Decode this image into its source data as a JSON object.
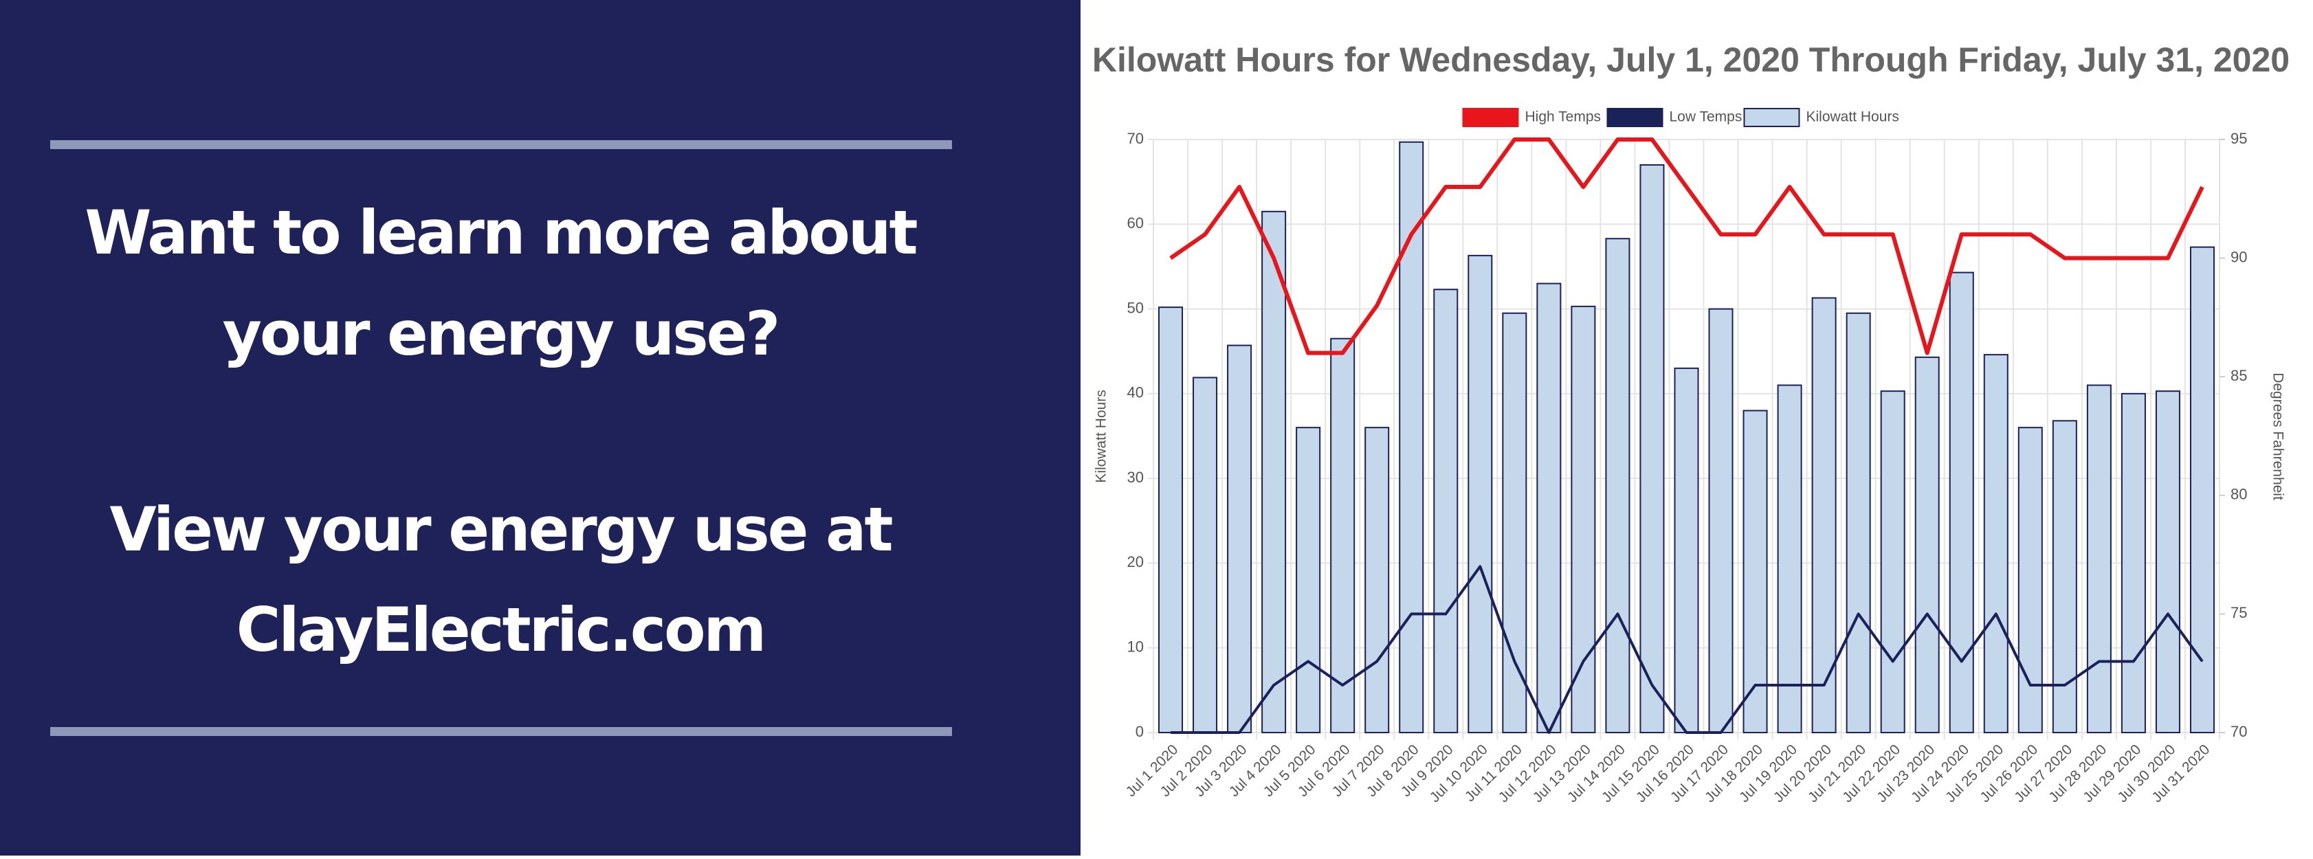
{
  "panel": {
    "question": [
      "Want to learn more about",
      "your energy use?"
    ],
    "cta": [
      "View your energy use at",
      "ClayElectric.com"
    ]
  },
  "chart_data": {
    "type": "bar",
    "title": "Kilowatt Hours for Wednesday, July 1, 2020 Through Friday, July 31, 2020",
    "y_label": "Kilowatt Hours",
    "y2_label": "Degrees Fahrenheit",
    "categories": [
      "Jul 1 2020",
      "Jul 2 2020",
      "Jul 3 2020",
      "Jul 4 2020",
      "Jul 5 2020",
      "Jul 6 2020",
      "Jul 7 2020",
      "Jul 8 2020",
      "Jul 9 2020",
      "Jul 10 2020",
      "Jul 11 2020",
      "Jul 12 2020",
      "Jul 13 2020",
      "Jul 14 2020",
      "Jul 15 2020",
      "Jul 16 2020",
      "Jul 17 2020",
      "Jul 18 2020",
      "Jul 19 2020",
      "Jul 20 2020",
      "Jul 21 2020",
      "Jul 22 2020",
      "Jul 23 2020",
      "Jul 24 2020",
      "Jul 25 2020",
      "Jul 26 2020",
      "Jul 27 2020",
      "Jul 28 2020",
      "Jul 29 2020",
      "Jul 30 2020",
      "Jul 31 2020"
    ],
    "series": [
      {
        "name": "High Temps",
        "type": "line",
        "axis": "y2",
        "color": "#e8161b",
        "values": [
          90,
          91,
          93,
          90,
          86,
          86,
          88,
          91,
          93,
          93,
          95,
          95,
          93,
          95,
          95,
          93,
          91,
          91,
          93,
          91,
          91,
          91,
          86,
          91,
          91,
          91,
          90,
          90,
          90,
          90,
          93
        ]
      },
      {
        "name": "Low Temps",
        "type": "line",
        "axis": "y2",
        "color": "#1b2159",
        "values": [
          70,
          70,
          70,
          72,
          73,
          72,
          73,
          75,
          75,
          77,
          73,
          70,
          73,
          75,
          72,
          70,
          70,
          72,
          72,
          72,
          75,
          73,
          75,
          73,
          75,
          72,
          72,
          73,
          73,
          75,
          73
        ]
      },
      {
        "name": "Kilowatt Hours",
        "type": "bar",
        "color": "#c5d7ea",
        "values": [
          50.2,
          41.9,
          45.7,
          61.5,
          36,
          46.5,
          36,
          69.7,
          52.3,
          56.3,
          49.5,
          53,
          50.3,
          58.3,
          67,
          43,
          50,
          38,
          41,
          51.3,
          49.5,
          40.3,
          44.3,
          54.3,
          44.6,
          36,
          36.8,
          41,
          40,
          40.3,
          57.3
        ]
      }
    ],
    "ylim": [
      0,
      70
    ],
    "yticks": [
      0,
      10,
      20,
      30,
      40,
      50,
      60,
      70
    ],
    "y2lim": [
      70,
      95
    ],
    "y2ticks": [
      70,
      75,
      80,
      85,
      90,
      95
    ],
    "grid": true
  }
}
